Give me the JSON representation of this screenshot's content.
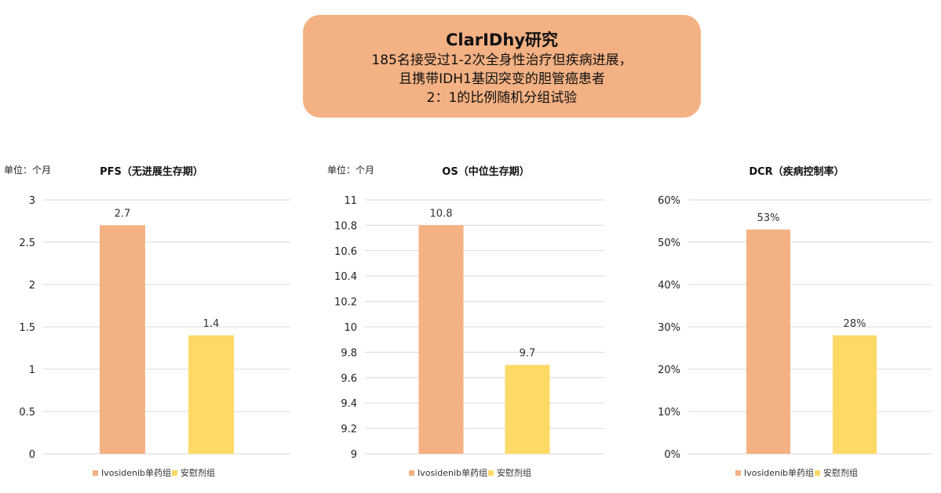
{
  "header": {
    "title": "ClarIDhy研究",
    "lines": [
      "185名接受过1-2次全身性治疗但疾病进展，",
      "且携带IDH1基因突变的胆管癌患者",
      "2：1的比例随机分组试验"
    ]
  },
  "colors": {
    "header_bg": "#f4b183",
    "ivosidenib": "#f4b183",
    "placebo": "#ffd966"
  },
  "chart_data": [
    {
      "type": "bar",
      "title": "PFS（无进展生存期）",
      "unit": "单位：个月",
      "categories": [
        "Ivosidenib单药组",
        "安慰剂组"
      ],
      "values": [
        2.7,
        1.4
      ],
      "value_labels": [
        "2.7",
        "1.4"
      ],
      "ylim": [
        0,
        3
      ],
      "yticks": [
        "0",
        "0.5",
        "1",
        "1.5",
        "2",
        "2.5",
        "3"
      ],
      "ytick_values": [
        0,
        0.5,
        1,
        1.5,
        2,
        2.5,
        3
      ],
      "legend": [
        "Ivosidenib单药组",
        "安慰剂组"
      ],
      "legend_position": "bottom",
      "grid": true
    },
    {
      "type": "bar",
      "title": "OS（中位生存期）",
      "unit": "单位：个月",
      "categories": [
        "Ivosidenib单药组",
        "安慰剂组"
      ],
      "values": [
        10.8,
        9.7
      ],
      "value_labels": [
        "10.8",
        "9.7"
      ],
      "ylim": [
        9,
        11
      ],
      "yticks": [
        "9",
        "9.2",
        "9.4",
        "9.6",
        "9.8",
        "10",
        "10.2",
        "10.4",
        "10.6",
        "10.8",
        "11"
      ],
      "ytick_values": [
        9,
        9.2,
        9.4,
        9.6,
        9.8,
        10,
        10.2,
        10.4,
        10.6,
        10.8,
        11
      ],
      "legend": [
        "Ivosidenib单药组",
        "安慰剂组"
      ],
      "legend_position": "bottom",
      "grid": true
    },
    {
      "type": "bar",
      "title": "DCR（疾病控制率）",
      "unit": "",
      "categories": [
        "Ivosidenib单药组",
        "安慰剂组"
      ],
      "values": [
        53,
        28
      ],
      "value_labels": [
        "53%",
        "28%"
      ],
      "ylim": [
        0,
        60
      ],
      "yticks": [
        "0%",
        "10%",
        "20%",
        "30%",
        "40%",
        "50%",
        "60%"
      ],
      "ytick_values": [
        0,
        10,
        20,
        30,
        40,
        50,
        60
      ],
      "legend": [
        "Ivosidenib单药组",
        "安慰剂组"
      ],
      "legend_position": "bottom",
      "grid": true
    }
  ]
}
